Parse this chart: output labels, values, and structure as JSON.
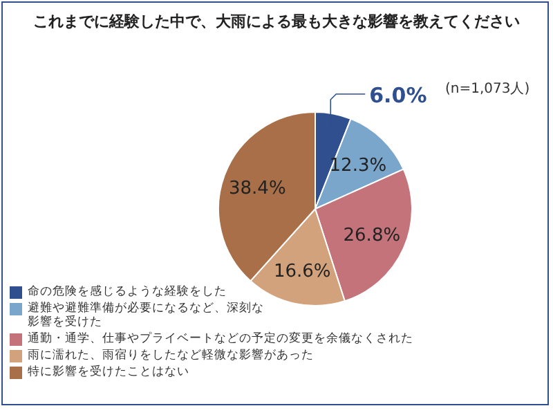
{
  "chart_data": {
    "type": "pie",
    "title": "これまでに経験した中で、大雨による最も大きな影響を教えてください",
    "categories": [
      "命の危険を感じるような経験をした",
      "避難や避難準備が必要になるなど、深刻な影響を受けた",
      "通勤・通学、仕事やプライベートなどの予定の変更を余儀なくされた",
      "雨に濡れた、雨宿りをしたなど軽微な影響があった",
      "特に影響を受けたことはない"
    ],
    "values": [
      6.0,
      12.3,
      26.8,
      16.6,
      38.4
    ],
    "value_labels": [
      "6.0%",
      "12.3%",
      "26.8%",
      "16.6%",
      "38.4%"
    ],
    "colors": [
      "#2f4f8f",
      "#7aa6cc",
      "#c4737b",
      "#d2a27c",
      "#a86f48"
    ],
    "annotations": [
      "(n=1,073人)"
    ],
    "legend": "bottom left"
  }
}
